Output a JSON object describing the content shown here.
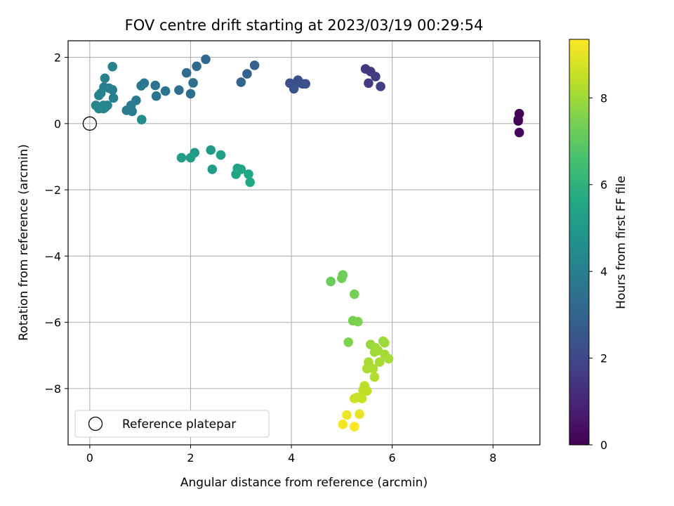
{
  "chart_data": {
    "type": "scatter",
    "title": "FOV centre drift starting at 2023/03/19 00:29:54",
    "xlabel": "Angular distance from reference (arcmin)",
    "ylabel": "Rotation from reference (arcmin)",
    "xlim": [
      -0.43,
      8.93
    ],
    "ylim": [
      -9.7,
      2.5
    ],
    "xticks": [
      0,
      2,
      4,
      6,
      8
    ],
    "yticks": [
      -8,
      -6,
      -4,
      -2,
      0,
      2
    ],
    "grid": true,
    "legend": {
      "position": "lower-left",
      "entries": [
        "Reference platepar"
      ]
    },
    "reference_point": {
      "x": 0,
      "y": 0,
      "label": "Reference platepar"
    },
    "colorbar": {
      "label": "Hours from first FF file",
      "range": [
        0,
        9.35
      ],
      "ticks": [
        0,
        2,
        4,
        6,
        8
      ],
      "colormap": "viridis"
    },
    "points": [
      {
        "x": 8.52,
        "y": 0.3,
        "h": 0.0
      },
      {
        "x": 8.5,
        "y": 0.12,
        "h": 0.05
      },
      {
        "x": 8.5,
        "y": 0.08,
        "h": 0.1
      },
      {
        "x": 8.52,
        "y": -0.27,
        "h": 0.15
      },
      {
        "x": 5.47,
        "y": 1.65,
        "h": 1.5
      },
      {
        "x": 5.57,
        "y": 1.57,
        "h": 1.55
      },
      {
        "x": 5.67,
        "y": 1.42,
        "h": 1.6
      },
      {
        "x": 5.53,
        "y": 1.22,
        "h": 1.65
      },
      {
        "x": 5.77,
        "y": 1.12,
        "h": 1.7
      },
      {
        "x": 3.97,
        "y": 1.22,
        "h": 2.2
      },
      {
        "x": 4.08,
        "y": 1.2,
        "h": 2.25
      },
      {
        "x": 4.13,
        "y": 1.31,
        "h": 2.3
      },
      {
        "x": 4.22,
        "y": 1.2,
        "h": 2.3
      },
      {
        "x": 4.28,
        "y": 1.2,
        "h": 2.35
      },
      {
        "x": 4.05,
        "y": 1.05,
        "h": 2.4
      },
      {
        "x": 3.27,
        "y": 1.76,
        "h": 2.9
      },
      {
        "x": 3.12,
        "y": 1.5,
        "h": 2.95
      },
      {
        "x": 3.0,
        "y": 1.25,
        "h": 3.0
      },
      {
        "x": 2.3,
        "y": 1.94,
        "h": 3.2
      },
      {
        "x": 2.12,
        "y": 1.73,
        "h": 3.25
      },
      {
        "x": 1.92,
        "y": 1.53,
        "h": 3.3
      },
      {
        "x": 2.05,
        "y": 1.23,
        "h": 3.35
      },
      {
        "x": 1.77,
        "y": 1.01,
        "h": 3.4
      },
      {
        "x": 2.0,
        "y": 0.9,
        "h": 3.45
      },
      {
        "x": 1.5,
        "y": 0.98,
        "h": 3.5
      },
      {
        "x": 1.3,
        "y": 1.15,
        "h": 3.55
      },
      {
        "x": 1.32,
        "y": 0.83,
        "h": 3.6
      },
      {
        "x": 1.08,
        "y": 1.22,
        "h": 3.7
      },
      {
        "x": 1.02,
        "y": 1.14,
        "h": 3.75
      },
      {
        "x": 0.92,
        "y": 0.7,
        "h": 3.8
      },
      {
        "x": 0.82,
        "y": 0.55,
        "h": 3.85
      },
      {
        "x": 0.73,
        "y": 0.4,
        "h": 3.9
      },
      {
        "x": 0.84,
        "y": 0.37,
        "h": 3.9
      },
      {
        "x": 0.47,
        "y": 0.77,
        "h": 4.0
      },
      {
        "x": 0.45,
        "y": 1.02,
        "h": 4.0
      },
      {
        "x": 0.38,
        "y": 1.07,
        "h": 4.05
      },
      {
        "x": 0.28,
        "y": 1.1,
        "h": 4.05
      },
      {
        "x": 0.3,
        "y": 1.37,
        "h": 4.1
      },
      {
        "x": 0.45,
        "y": 1.72,
        "h": 4.1
      },
      {
        "x": 0.22,
        "y": 0.92,
        "h": 4.15
      },
      {
        "x": 0.18,
        "y": 0.85,
        "h": 4.15
      },
      {
        "x": 0.12,
        "y": 0.55,
        "h": 4.2
      },
      {
        "x": 0.2,
        "y": 0.5,
        "h": 4.2
      },
      {
        "x": 0.27,
        "y": 0.55,
        "h": 4.25
      },
      {
        "x": 0.3,
        "y": 0.48,
        "h": 4.25
      },
      {
        "x": 0.35,
        "y": 0.55,
        "h": 4.3
      },
      {
        "x": 0.27,
        "y": 0.45,
        "h": 4.3
      },
      {
        "x": 0.18,
        "y": 0.45,
        "h": 4.35
      },
      {
        "x": 1.03,
        "y": 0.12,
        "h": 4.5
      },
      {
        "x": 2.4,
        "y": -0.8,
        "h": 5.05
      },
      {
        "x": 2.08,
        "y": -0.88,
        "h": 5.1
      },
      {
        "x": 1.82,
        "y": -1.03,
        "h": 5.15
      },
      {
        "x": 2.0,
        "y": -1.03,
        "h": 5.15
      },
      {
        "x": 2.6,
        "y": -0.95,
        "h": 5.2
      },
      {
        "x": 2.43,
        "y": -1.38,
        "h": 5.2
      },
      {
        "x": 2.93,
        "y": -1.35,
        "h": 5.4
      },
      {
        "x": 3.0,
        "y": -1.38,
        "h": 5.45
      },
      {
        "x": 2.9,
        "y": -1.53,
        "h": 5.5
      },
      {
        "x": 3.15,
        "y": -1.53,
        "h": 5.55
      },
      {
        "x": 3.18,
        "y": -1.77,
        "h": 5.6
      },
      {
        "x": 4.78,
        "y": -4.77,
        "h": 7.2
      },
      {
        "x": 5.02,
        "y": -4.57,
        "h": 7.25
      },
      {
        "x": 5.0,
        "y": -4.67,
        "h": 7.3
      },
      {
        "x": 5.25,
        "y": -5.15,
        "h": 7.4
      },
      {
        "x": 5.22,
        "y": -5.95,
        "h": 7.45
      },
      {
        "x": 5.32,
        "y": -5.98,
        "h": 7.5
      },
      {
        "x": 5.13,
        "y": -6.6,
        "h": 7.55
      },
      {
        "x": 5.57,
        "y": -6.67,
        "h": 7.9
      },
      {
        "x": 5.82,
        "y": -6.57,
        "h": 7.95
      },
      {
        "x": 5.85,
        "y": -6.62,
        "h": 8.0
      },
      {
        "x": 5.67,
        "y": -6.77,
        "h": 8.0
      },
      {
        "x": 5.72,
        "y": -6.85,
        "h": 8.05
      },
      {
        "x": 5.65,
        "y": -6.9,
        "h": 8.05
      },
      {
        "x": 5.85,
        "y": -6.97,
        "h": 8.1
      },
      {
        "x": 5.93,
        "y": -7.1,
        "h": 8.1
      },
      {
        "x": 5.53,
        "y": -7.2,
        "h": 8.15
      },
      {
        "x": 5.75,
        "y": -7.2,
        "h": 8.15
      },
      {
        "x": 5.5,
        "y": -7.4,
        "h": 8.2
      },
      {
        "x": 5.62,
        "y": -7.4,
        "h": 8.2
      },
      {
        "x": 5.65,
        "y": -7.65,
        "h": 8.25
      },
      {
        "x": 5.45,
        "y": -7.92,
        "h": 8.4
      },
      {
        "x": 5.5,
        "y": -8.07,
        "h": 8.45
      },
      {
        "x": 5.42,
        "y": -8.05,
        "h": 8.45
      },
      {
        "x": 5.3,
        "y": -8.27,
        "h": 8.5
      },
      {
        "x": 5.4,
        "y": -8.3,
        "h": 8.55
      },
      {
        "x": 5.25,
        "y": -8.3,
        "h": 8.6
      },
      {
        "x": 5.35,
        "y": -8.77,
        "h": 9.05
      },
      {
        "x": 5.1,
        "y": -8.8,
        "h": 9.1
      },
      {
        "x": 5.02,
        "y": -9.08,
        "h": 9.2
      },
      {
        "x": 5.25,
        "y": -9.15,
        "h": 9.3
      }
    ]
  }
}
